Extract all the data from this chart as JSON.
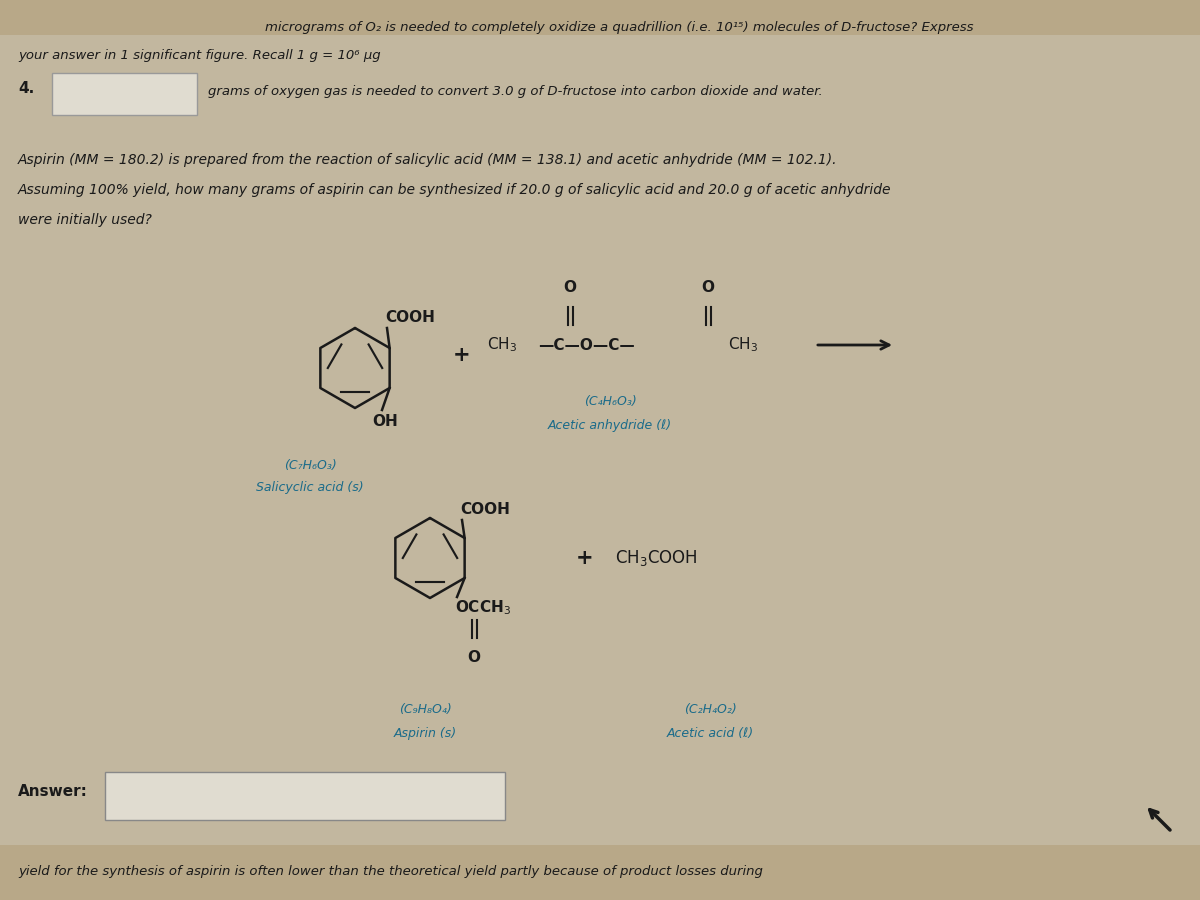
{
  "bg_color": "#b8a888",
  "center_bg": "#d8d0c0",
  "text_color": "#1a1a1a",
  "blue_color": "#1a6b8a",
  "title_line1": "micrograms of O₂ is needed to completely oxidize a quadrillion (i.e. 10¹⁵) molecules of D-fructose? Express",
  "title_line2": "your answer in 1 significant figure. Recall 1 g = 10⁶ µg",
  "q4_label": "4.",
  "q4_text": "grams of oxygen gas is needed to convert 3.0 g of D-fructose into carbon dioxide and water.",
  "aspirin_intro1": "Aspirin (MM = 180.2) is prepared from the reaction of salicylic acid (MM = 138.1) and acetic anhydride (MM = 102.1).",
  "aspirin_intro2": "Assuming 100% yield, how many grams of aspirin can be synthesized if 20.0 g of salicylic acid and 20.0 g of acetic anhydride",
  "aspirin_intro3": "were initially used?",
  "answer_label": "Answer:",
  "bottom_text": "yield for the synthesis of aspirin is often lower than the theoretical yield partly because of product losses during",
  "salicylic_formula": "(C₇H₆O₃)",
  "salicylic_name": "Salicyclic acid (s)",
  "acetic_anhydride_formula": "(C₄H₆O₃)",
  "acetic_anhydride_name": "Acetic anhydride (ℓ)",
  "aspirin_formula": "(C₉H₈O₄)",
  "aspirin_name": "Aspirin (s)",
  "acetic_acid_formula": "(C₂H₄O₂)",
  "acetic_acid_name": "Acetic acid (ℓ)"
}
